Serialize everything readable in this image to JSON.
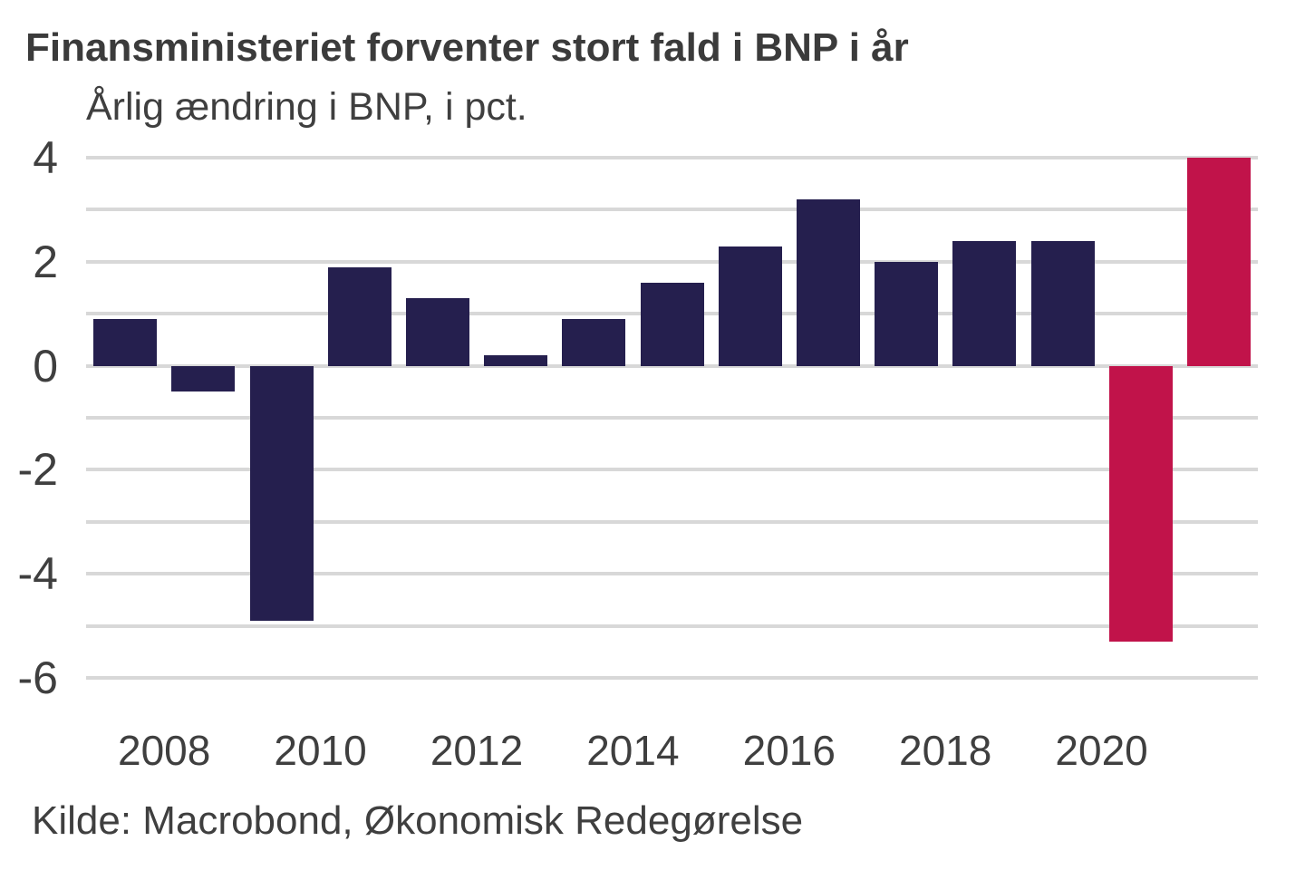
{
  "header": {
    "title": "Finansministeriet forventer stort fald i BNP i år",
    "subtitle": "Årlig ændring i BNP, i pct."
  },
  "source": {
    "text": "Kilde: Macrobond, Økonomisk Redegørelse"
  },
  "colors": {
    "bar_historical": "#251f4e",
    "bar_forecast": "#c1134a",
    "gridline": "#d8d8d8",
    "title_text": "#3b3b3b",
    "axis_text": "#3f3f3f"
  },
  "chart_data": {
    "type": "bar",
    "title": "Finansministeriet forventer stort fald i BNP i år",
    "subtitle": "Årlig ændring i BNP, i pct.",
    "xlabel": "",
    "ylabel": "Årlig ændring i BNP, i pct.",
    "ylim": [
      -6,
      4
    ],
    "grid": "horizontal, every 1 unit",
    "y_tick_labels": [
      "4",
      "2",
      "0",
      "-2",
      "-4",
      "-6"
    ],
    "x_tick_labels": [
      "2008",
      "2010",
      "2012",
      "2014",
      "2016",
      "2018",
      "2020"
    ],
    "legend_position": "none",
    "bars": [
      {
        "year": 2007,
        "value": 0.9,
        "kind": "historical"
      },
      {
        "year": 2008,
        "value": -0.5,
        "kind": "historical"
      },
      {
        "year": 2009,
        "value": -4.9,
        "kind": "historical"
      },
      {
        "year": 2010,
        "value": 1.9,
        "kind": "historical"
      },
      {
        "year": 2011,
        "value": 1.3,
        "kind": "historical"
      },
      {
        "year": 2012,
        "value": 0.2,
        "kind": "historical"
      },
      {
        "year": 2013,
        "value": 0.9,
        "kind": "historical"
      },
      {
        "year": 2014,
        "value": 1.6,
        "kind": "historical"
      },
      {
        "year": 2015,
        "value": 2.3,
        "kind": "historical"
      },
      {
        "year": 2016,
        "value": 3.2,
        "kind": "historical"
      },
      {
        "year": 2017,
        "value": 2.0,
        "kind": "historical"
      },
      {
        "year": 2018,
        "value": 2.4,
        "kind": "historical"
      },
      {
        "year": 2019,
        "value": 2.4,
        "kind": "historical"
      },
      {
        "year": 2020,
        "value": -5.3,
        "kind": "forecast"
      },
      {
        "year": 2021,
        "value": 4.0,
        "kind": "forecast"
      }
    ]
  }
}
